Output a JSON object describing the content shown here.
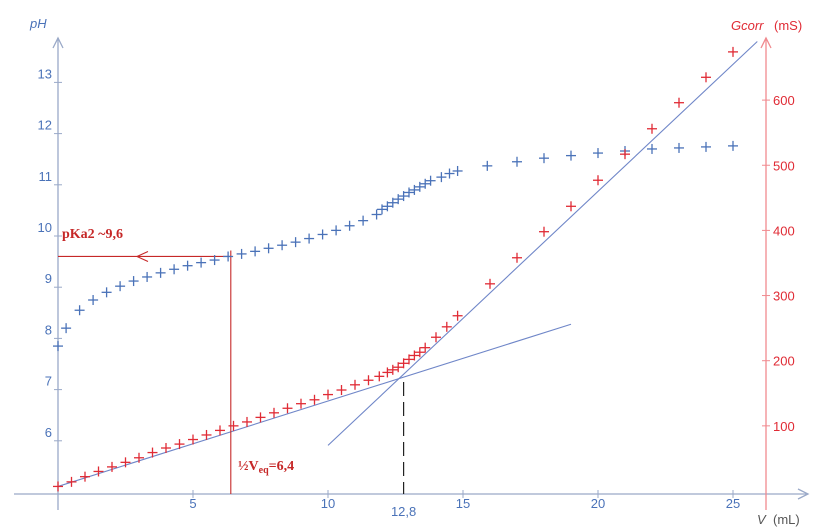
{
  "colors": {
    "ph": "#4a72b8",
    "g": "#e02b35",
    "annot": "#c62828",
    "axis": "#9aa9c8",
    "fit": "#6f86c8"
  },
  "chart_data": {
    "type": "scatter",
    "x_axis": {
      "label": "V",
      "unit": "(mL)",
      "range": [
        0,
        26
      ],
      "ticks": [
        "5",
        "10",
        "15",
        "20",
        "25"
      ]
    },
    "y_left": {
      "label": "pH",
      "range": [
        5,
        14
      ],
      "ticks": [
        "6",
        "7",
        "8",
        "9",
        "10",
        "11",
        "12",
        "13"
      ]
    },
    "y_right": {
      "label": "Gcorr",
      "unit": "(mS)",
      "range": [
        0,
        700
      ],
      "ticks": [
        "100",
        "200",
        "300",
        "400",
        "500",
        "600"
      ]
    },
    "series": [
      {
        "axis": "left",
        "marker": "+",
        "points": [
          [
            0,
            7.85
          ],
          [
            0.3,
            8.2
          ],
          [
            0.8,
            8.55
          ],
          [
            1.3,
            8.75
          ],
          [
            1.8,
            8.9
          ],
          [
            2.3,
            9.02
          ],
          [
            2.8,
            9.12
          ],
          [
            3.3,
            9.2
          ],
          [
            3.8,
            9.28
          ],
          [
            4.3,
            9.35
          ],
          [
            4.8,
            9.42
          ],
          [
            5.3,
            9.48
          ],
          [
            5.8,
            9.53
          ],
          [
            6.3,
            9.6
          ],
          [
            6.8,
            9.65
          ],
          [
            7.3,
            9.7
          ],
          [
            7.8,
            9.76
          ],
          [
            8.3,
            9.82
          ],
          [
            8.8,
            9.88
          ],
          [
            9.3,
            9.95
          ],
          [
            9.8,
            10.03
          ],
          [
            10.3,
            10.11
          ],
          [
            10.8,
            10.2
          ],
          [
            11.3,
            10.3
          ],
          [
            11.8,
            10.42
          ],
          [
            12.0,
            10.52
          ],
          [
            12.2,
            10.58
          ],
          [
            12.4,
            10.65
          ],
          [
            12.6,
            10.72
          ],
          [
            12.8,
            10.78
          ],
          [
            13.0,
            10.85
          ],
          [
            13.2,
            10.9
          ],
          [
            13.4,
            10.96
          ],
          [
            13.6,
            11.02
          ],
          [
            13.8,
            11.08
          ],
          [
            14.2,
            11.15
          ],
          [
            14.5,
            11.22
          ],
          [
            14.8,
            11.27
          ],
          [
            15.9,
            11.37
          ],
          [
            17.0,
            11.45
          ],
          [
            18.0,
            11.52
          ],
          [
            19.0,
            11.57
          ],
          [
            20.0,
            11.62
          ],
          [
            21.0,
            11.66
          ],
          [
            22.0,
            11.7
          ],
          [
            23.0,
            11.72
          ],
          [
            24.0,
            11.74
          ],
          [
            25.0,
            11.76
          ]
        ]
      },
      {
        "axis": "right",
        "marker": "+",
        "points": [
          [
            0,
            7
          ],
          [
            0.5,
            14
          ],
          [
            1.0,
            22
          ],
          [
            1.5,
            30
          ],
          [
            2.0,
            37
          ],
          [
            2.5,
            44
          ],
          [
            3.0,
            51
          ],
          [
            3.5,
            59
          ],
          [
            4.0,
            66
          ],
          [
            4.5,
            72
          ],
          [
            5.0,
            79
          ],
          [
            5.5,
            86
          ],
          [
            6.0,
            93
          ],
          [
            6.5,
            100
          ],
          [
            7.0,
            106
          ],
          [
            7.5,
            113
          ],
          [
            8.0,
            120
          ],
          [
            8.5,
            127
          ],
          [
            9.0,
            134
          ],
          [
            9.5,
            140
          ],
          [
            10.0,
            148
          ],
          [
            10.5,
            155
          ],
          [
            11.0,
            163
          ],
          [
            11.5,
            170
          ],
          [
            11.9,
            176
          ],
          [
            12.2,
            182
          ],
          [
            12.4,
            186
          ],
          [
            12.6,
            190
          ],
          [
            12.8,
            196
          ],
          [
            13.0,
            202
          ],
          [
            13.2,
            208
          ],
          [
            13.4,
            213
          ],
          [
            13.6,
            220
          ],
          [
            14.0,
            236
          ],
          [
            14.4,
            252
          ],
          [
            14.8,
            269
          ],
          [
            16.0,
            318
          ],
          [
            17.0,
            358
          ],
          [
            18.0,
            398
          ],
          [
            19.0,
            437
          ],
          [
            20.0,
            477
          ],
          [
            21.0,
            517
          ],
          [
            22.0,
            556
          ],
          [
            23.0,
            596
          ],
          [
            24.0,
            635
          ],
          [
            25.0,
            674
          ]
        ]
      }
    ],
    "fit_lines": [
      {
        "axis": "right",
        "from": [
          0,
          7
        ],
        "to": [
          19,
          256
        ]
      },
      {
        "axis": "right",
        "from": [
          10,
          70
        ],
        "to": [
          25.9,
          690
        ]
      }
    ],
    "markers": {
      "half_veq_x": 6.4,
      "pka2_y": 9.6,
      "veq_x": 12.8,
      "veq_label": "12,8"
    },
    "annotations": {
      "pka2": "pKa2 ~9,6",
      "half_veq_prefix": "½V",
      "half_veq_sub": "eq",
      "half_veq_suffix": "=6,4"
    }
  }
}
